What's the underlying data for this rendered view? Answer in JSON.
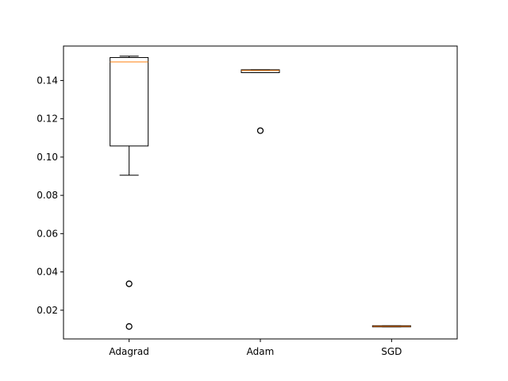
{
  "chart_data": {
    "type": "box",
    "title": "",
    "xlabel": "",
    "ylabel": "",
    "ylim": [
      0.005,
      0.158
    ],
    "yticks": [
      0.02,
      0.04,
      0.06,
      0.08,
      0.1,
      0.12,
      0.14
    ],
    "ytick_labels": [
      "0.02",
      "0.04",
      "0.06",
      "0.08",
      "0.10",
      "0.12",
      "0.14"
    ],
    "categories": [
      "Adagrad",
      "Adam",
      "SGD"
    ],
    "boxes": [
      {
        "name": "Adagrad",
        "whisker_low": 0.0905,
        "q1": 0.1058,
        "median": 0.1497,
        "q3": 0.152,
        "whisker_high": 0.1527,
        "outliers": [
          0.0338,
          0.0115
        ]
      },
      {
        "name": "Adam",
        "whisker_low": 0.1441,
        "q1": 0.1441,
        "median": 0.1452,
        "q3": 0.1456,
        "whisker_high": 0.1456,
        "outliers": [
          0.1138
        ]
      },
      {
        "name": "SGD",
        "whisker_low": 0.0113,
        "q1": 0.0113,
        "median": 0.0116,
        "q3": 0.0119,
        "whisker_high": 0.0119,
        "outliers": []
      }
    ],
    "colors": {
      "box": "#000000",
      "median": "#ff7f0e",
      "axes": "#000000"
    },
    "grid": false,
    "legend": "none"
  }
}
